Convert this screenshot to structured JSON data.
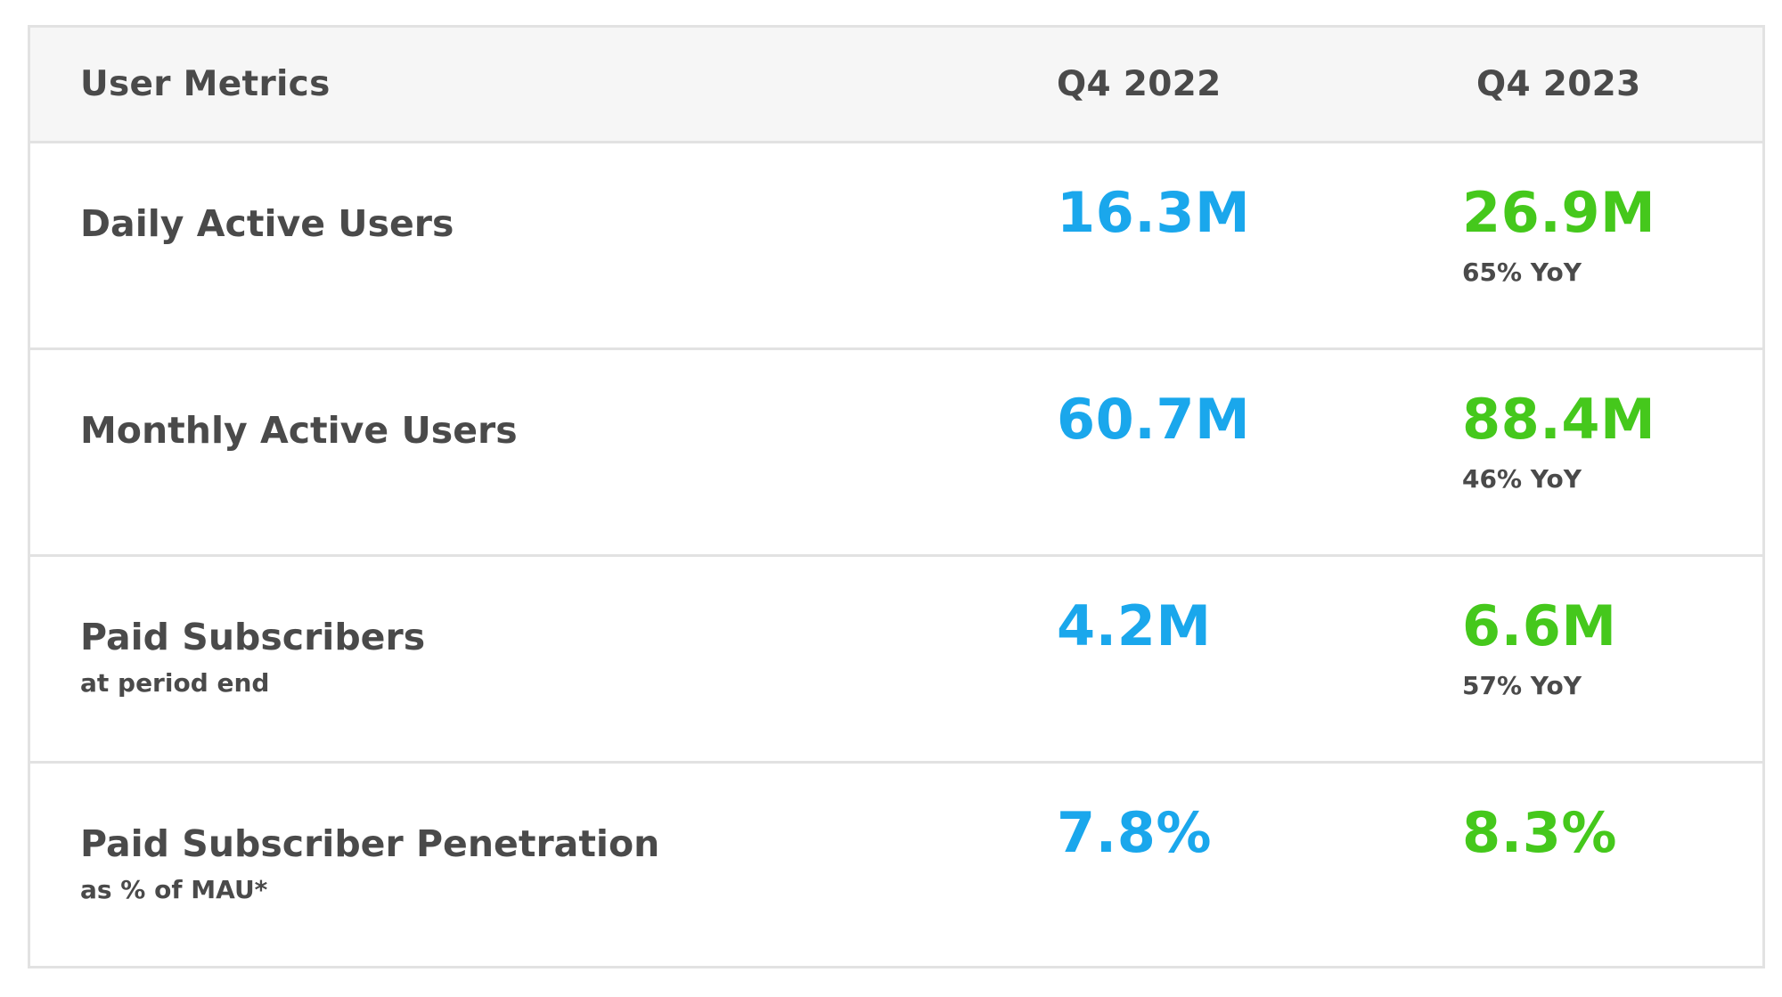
{
  "table": {
    "header": {
      "label": "User Metrics",
      "col1": "Q4 2022",
      "col2": "Q4 2023"
    },
    "colors": {
      "q4_2022_value": "#1aa7ec",
      "q4_2023_value": "#45c81c",
      "text": "#4a4a4a"
    },
    "rows": [
      {
        "label": "Daily Active Users",
        "sublabel": "",
        "q4_2022": "16.3M",
        "q4_2023": "26.9M",
        "yoy": "65% YoY"
      },
      {
        "label": "Monthly Active Users",
        "sublabel": "",
        "q4_2022": "60.7M",
        "q4_2023": "88.4M",
        "yoy": "46% YoY"
      },
      {
        "label": "Paid Subscribers",
        "sublabel": "at period end",
        "q4_2022": "4.2M",
        "q4_2023": "6.6M",
        "yoy": "57% YoY"
      },
      {
        "label": "Paid Subscriber Penetration",
        "sublabel": "as % of MAU*",
        "q4_2022": "7.8%",
        "q4_2023": "8.3%",
        "yoy": ""
      }
    ]
  }
}
